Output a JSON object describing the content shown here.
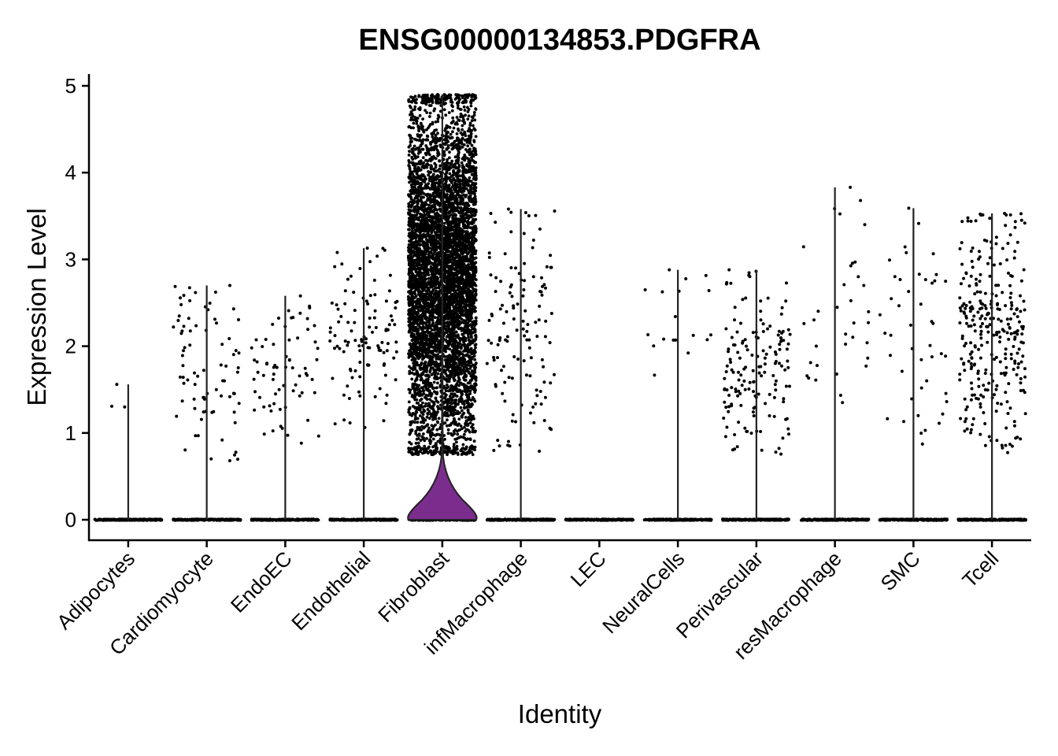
{
  "chart_data": {
    "type": "violin",
    "title": "ENSG00000134853.PDGFRA",
    "xlabel": "Identity",
    "ylabel": "Expression Level",
    "ylim": [
      -0.25,
      5.15
    ],
    "yticks": [
      0,
      1,
      2,
      3,
      4,
      5
    ],
    "categories": [
      "Adipocytes",
      "Cardiomyocyte",
      "EndoEC",
      "Endothelial",
      "Fibroblast",
      "infMacrophage",
      "LEC",
      "NeuralCells",
      "Perivascular",
      "resMacrophage",
      "SMC",
      "Tcell"
    ],
    "max_expression": [
      1.56,
      2.7,
      2.58,
      3.13,
      4.9,
      3.58,
      0,
      2.88,
      2.88,
      3.83,
      3.59,
      3.53
    ],
    "nonzero_range": [
      [
        1.15,
        1.56
      ],
      [
        0.65,
        2.7
      ],
      [
        0.85,
        2.58
      ],
      [
        1.05,
        3.13
      ],
      [
        0.75,
        4.9
      ],
      [
        0.77,
        3.58
      ],
      [
        0,
        0
      ],
      [
        1.03,
        2.88
      ],
      [
        0.72,
        2.88
      ],
      [
        1.15,
        3.83
      ],
      [
        0.83,
        3.59
      ],
      [
        0.77,
        3.53
      ]
    ],
    "approx_nonzero_cells": [
      3,
      80,
      70,
      110,
      6000,
      130,
      0,
      18,
      160,
      35,
      45,
      300
    ],
    "violin_fill": "#7B2D8E",
    "point_color": "#000000"
  }
}
